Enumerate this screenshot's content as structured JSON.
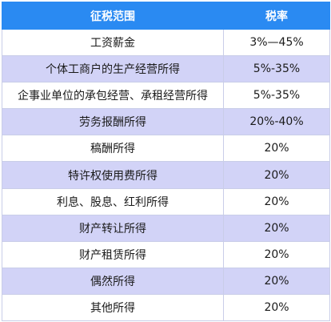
{
  "table": {
    "headers": [
      "征税范围",
      "税率"
    ],
    "rows": [
      {
        "scope": "工资薪金",
        "rate": "3%—45%"
      },
      {
        "scope": "个体工商户的生产经营所得",
        "rate": "5%-35%"
      },
      {
        "scope": "企事业单位的承包经营、承租经营所得",
        "rate": "5%-35%"
      },
      {
        "scope": "劳务报酬所得",
        "rate": "20%-40%"
      },
      {
        "scope": "稿酬所得",
        "rate": "20%"
      },
      {
        "scope": "特许权使用费所得",
        "rate": "20%"
      },
      {
        "scope": "利息、股息、红利所得",
        "rate": "20%"
      },
      {
        "scope": "财产转让所得",
        "rate": "20%"
      },
      {
        "scope": "财产租赁所得",
        "rate": "20%"
      },
      {
        "scope": "偶然所得",
        "rate": "20%"
      },
      {
        "scope": "其他所得",
        "rate": "20%"
      }
    ]
  },
  "colors": {
    "header_bg": "#2a8af2",
    "band_bg": "#d2d3f7",
    "row_bg": "#ffffff"
  }
}
